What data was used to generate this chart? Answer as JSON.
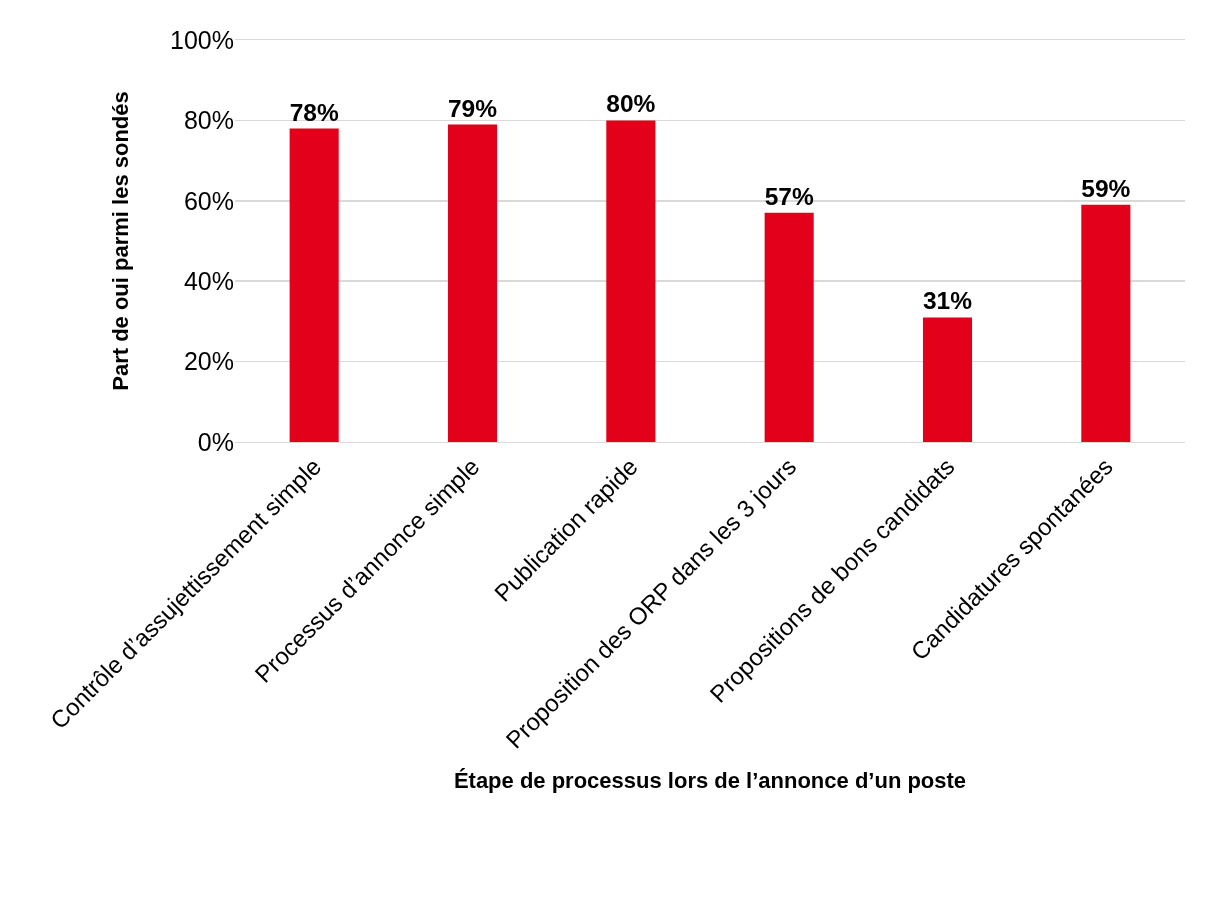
{
  "chart_data": {
    "type": "bar",
    "xlabel": "Étape de processus lors de l’annonce d’un poste",
    "ylabel": "Part de oui parmi les sondés",
    "categories": [
      "Contrôle d’assujettissement simple",
      "Processus d’annonce simple",
      "Publication rapide",
      "Proposition des ORP dans les 3 jours",
      "Propositions de bons candidats",
      "Candidatures spontanées"
    ],
    "values": [
      78,
      79,
      80,
      57,
      31,
      59
    ],
    "value_labels": [
      "78%",
      "79%",
      "80%",
      "57%",
      "31%",
      "59%"
    ],
    "color": "#e2001a",
    "ylim": [
      0,
      100
    ],
    "yticks": [
      {
        "value": 0,
        "label": "0%"
      },
      {
        "value": 20,
        "label": "20%"
      },
      {
        "value": 40,
        "label": "40%"
      },
      {
        "value": 60,
        "label": "60%"
      },
      {
        "value": 80,
        "label": "80%"
      },
      {
        "value": 100,
        "label": "100%"
      }
    ],
    "grid": "y"
  }
}
